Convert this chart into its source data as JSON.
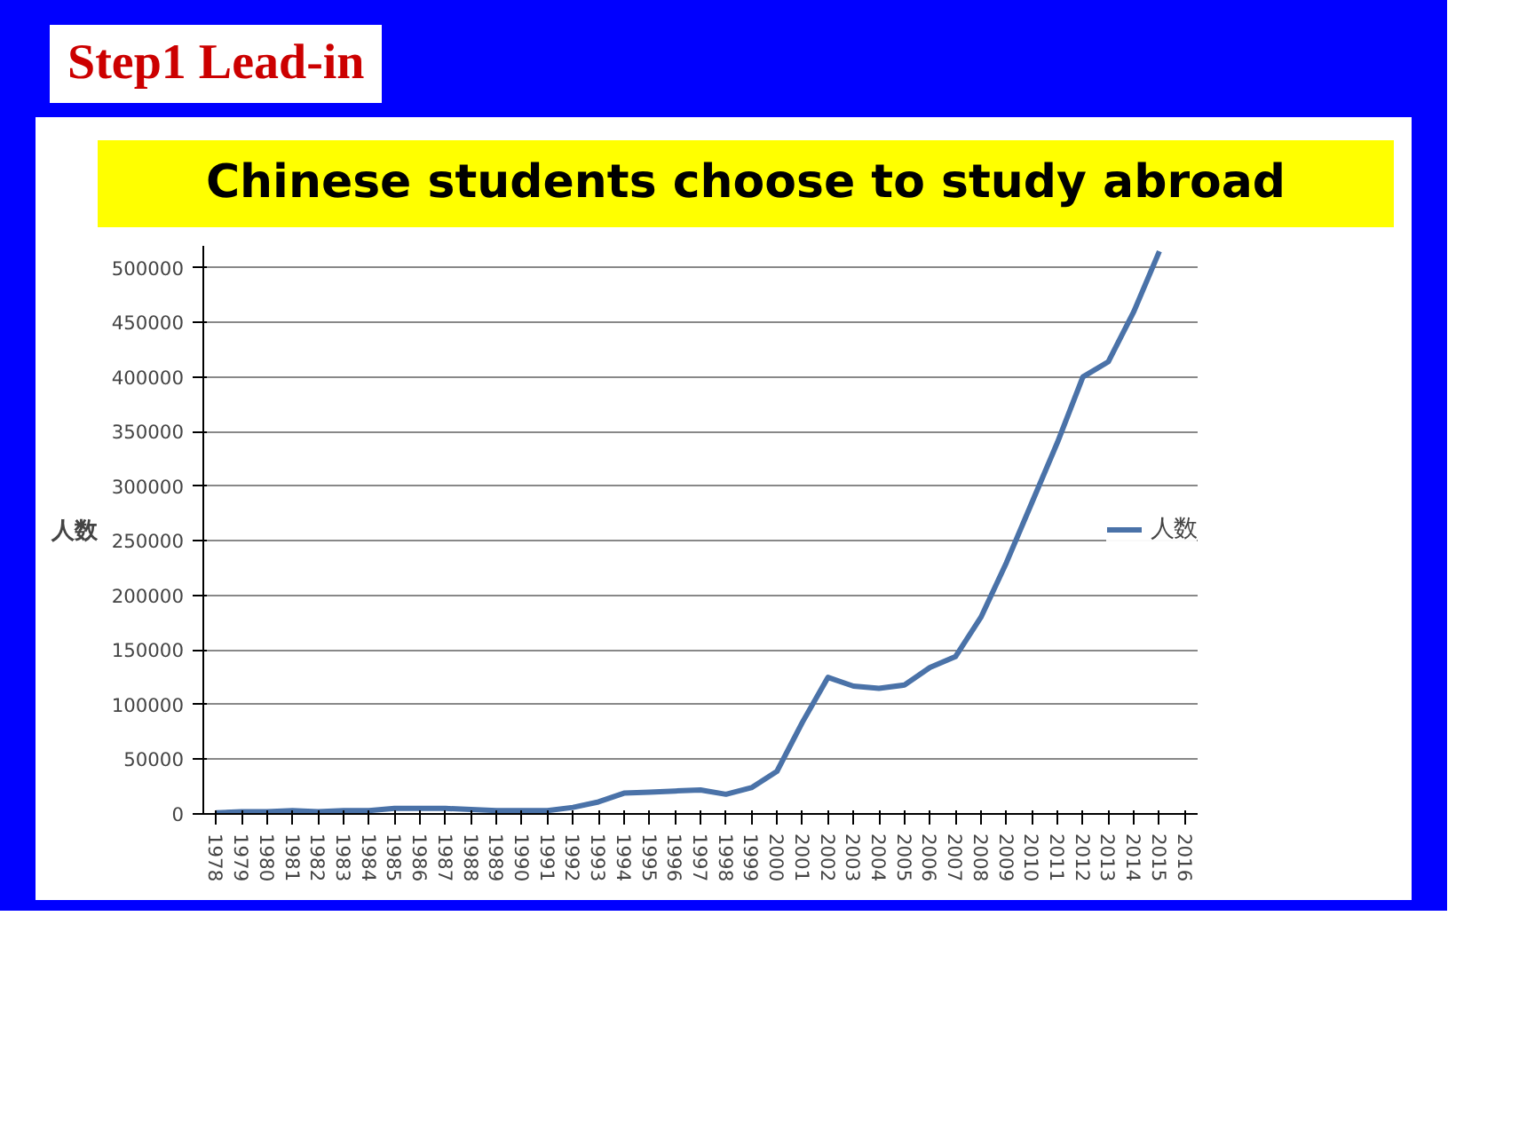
{
  "chart_data": {
    "type": "line",
    "title": "Chinese students choose to study abroad",
    "ylabel": "人数",
    "annotations": [
      "Step1 Lead-in"
    ],
    "categories": [
      "1978",
      "1979",
      "1980",
      "1981",
      "1982",
      "1983",
      "1984",
      "1985",
      "1986",
      "1987",
      "1988",
      "1989",
      "1990",
      "1991",
      "1992",
      "1993",
      "1994",
      "1995",
      "1996",
      "1997",
      "1998",
      "1999",
      "2000",
      "2001",
      "2002",
      "2003",
      "2004",
      "2005",
      "2006",
      "2007",
      "2008",
      "2009",
      "2010",
      "2011",
      "2012",
      "2013",
      "2014",
      "2015",
      "2016"
    ],
    "series": [
      {
        "name": "人数",
        "color": "#4a72a8",
        "values": [
          1000,
          2000,
          2000,
          3000,
          2000,
          3000,
          3000,
          5000,
          5000,
          5000,
          4000,
          3000,
          3000,
          3000,
          6000,
          11000,
          19000,
          20000,
          21000,
          22000,
          18000,
          24000,
          39000,
          84000,
          125000,
          117000,
          115000,
          118000,
          134000,
          144000,
          180000,
          230000,
          285000,
          340000,
          400000,
          414000,
          460000,
          515000,
          null
        ]
      }
    ],
    "ylim": [
      0,
      520000
    ],
    "yticks": [
      0,
      50000,
      100000,
      150000,
      200000,
      250000,
      300000,
      350000,
      400000,
      450000,
      500000
    ],
    "grid": "y",
    "legend": "right",
    "marker": "none",
    "line_style": "solid"
  }
}
